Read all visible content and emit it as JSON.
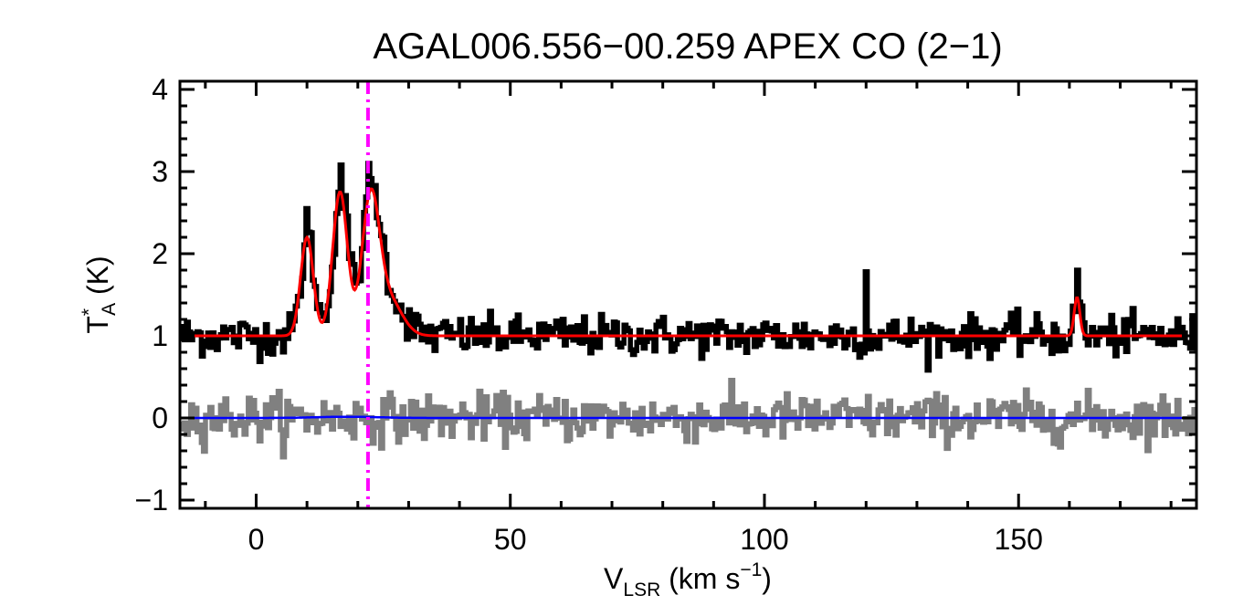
{
  "chart_data": {
    "type": "line",
    "title": "AGAL006.556−00.259  APEX CO (2−1)",
    "xlabel": {
      "main": "V",
      "sub": "LSR",
      "unit": " (km s",
      "sup": "−1",
      "close": ")"
    },
    "ylabel": {
      "main": "T",
      "sup": "*",
      "sub": "A",
      "unit": " (K)"
    },
    "xlim": [
      -15,
      185
    ],
    "ylim": [
      -1.1,
      4.1
    ],
    "x_ticks": [
      0,
      50,
      100,
      150
    ],
    "x_tick_labels": [
      "0",
      "50",
      "100",
      "150"
    ],
    "y_ticks": [
      -1,
      0,
      1,
      2,
      3,
      4
    ],
    "y_tick_labels": [
      "−1",
      "0",
      "1",
      "2",
      "3",
      "4"
    ],
    "vline": {
      "x": 22,
      "color": "#ff00ff",
      "style": "dash-dot"
    },
    "series": [
      {
        "role": "observed spectrum (offset +1 K)",
        "color": "#000000",
        "baseline": 1.0,
        "noise_rms": 0.12,
        "components": [
          {
            "center": 10.0,
            "amplitude": 1.2,
            "sigma": 1.3
          },
          {
            "center": 16.5,
            "amplitude": 1.75,
            "sigma": 1.5
          },
          {
            "center": 22.5,
            "amplitude": 1.6,
            "sigma": 1.8
          },
          {
            "center": 26.0,
            "amplitude": 0.45,
            "sigma": 2.8
          },
          {
            "center": 161.5,
            "amplitude": 0.5,
            "sigma": 0.6
          }
        ],
        "spikes": [
          {
            "x": 120,
            "y": 1.78
          },
          {
            "x": 161.3,
            "y": 1.8
          },
          {
            "x": 22,
            "y": 3.1
          },
          {
            "x": 16.3,
            "y": 3.08
          },
          {
            "x": 9.6,
            "y": 2.55
          }
        ]
      },
      {
        "role": "gaussian fit",
        "color": "#ff0000",
        "baseline": 1.0,
        "components": [
          {
            "center": 10.0,
            "amplitude": 1.2,
            "sigma": 1.25
          },
          {
            "center": 16.5,
            "amplitude": 1.75,
            "sigma": 1.45
          },
          {
            "center": 22.5,
            "amplitude": 1.6,
            "sigma": 1.7
          },
          {
            "center": 26.0,
            "amplitude": 0.45,
            "sigma": 2.6
          },
          {
            "center": 161.5,
            "amplitude": 0.47,
            "sigma": 0.55
          }
        ]
      },
      {
        "role": "residual",
        "color": "#808080",
        "baseline": 0.0,
        "noise_rms": 0.14
      },
      {
        "role": "zero level",
        "color": "#0000ff",
        "baseline": 0.0
      }
    ]
  }
}
